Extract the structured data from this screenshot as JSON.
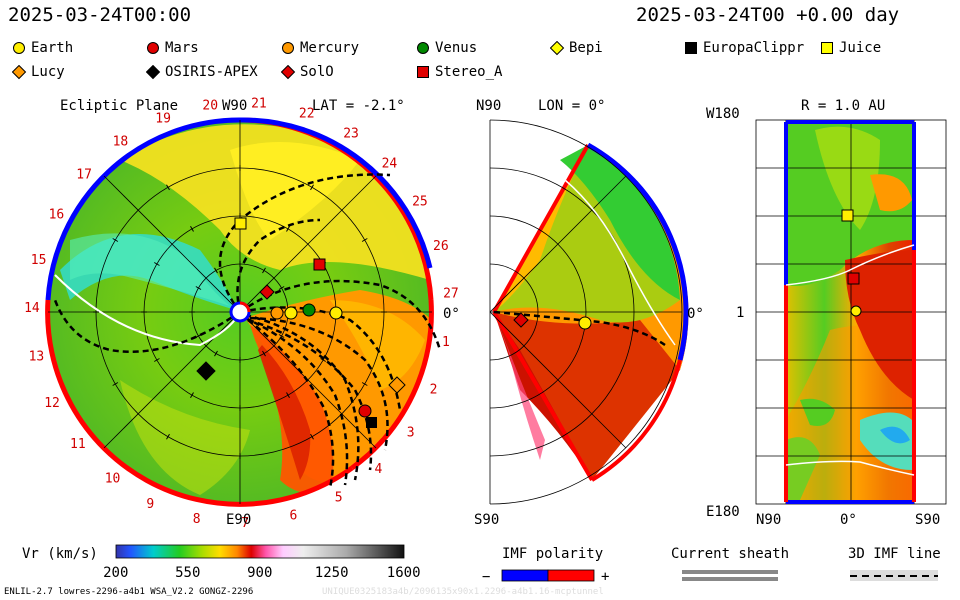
{
  "header": {
    "left_time": "2025-03-24T00:00",
    "right_time": "2025-03-24T00 +0.00 day"
  },
  "legend": [
    {
      "name": "Earth",
      "shape": "circle",
      "color": "#ffee00"
    },
    {
      "name": "Mars",
      "shape": "circle",
      "color": "#e00000"
    },
    {
      "name": "Mercury",
      "shape": "circle",
      "color": "#ff9900"
    },
    {
      "name": "Venus",
      "shape": "circle",
      "color": "#008800"
    },
    {
      "name": "Bepi",
      "shape": "diamond",
      "color": "#ffff00"
    },
    {
      "name": "EuropaClippr",
      "shape": "square",
      "color": "#000000"
    },
    {
      "name": "Juice",
      "shape": "square",
      "color": "#ffff00"
    },
    {
      "name": "Lucy",
      "shape": "diamond",
      "color": "#ff9900"
    },
    {
      "name": "OSIRIS-APEX",
      "shape": "diamond",
      "color": "#000000"
    },
    {
      "name": "SolO",
      "shape": "diamond",
      "color": "#e00000"
    },
    {
      "name": "Stereo_A",
      "shape": "square",
      "color": "#e00000"
    }
  ],
  "panels": {
    "ecliptic": {
      "title": "Ecliptic Plane",
      "top_label": "W90",
      "lat_label": "LAT = -2.1°",
      "right_label": "0°",
      "bottom_label": "E90",
      "carrington_numbers": [
        "1",
        "2",
        "3",
        "4",
        "5",
        "6",
        "7",
        "8",
        "9",
        "10",
        "11",
        "12",
        "13",
        "14",
        "15",
        "16",
        "17",
        "18",
        "19",
        "20",
        "21",
        "22",
        "23",
        "24",
        "25",
        "26",
        "27"
      ]
    },
    "meridional": {
      "top_left": "N90",
      "lon_label": "LON = 0°",
      "right_label": "0°",
      "bottom_left": "S90"
    },
    "map": {
      "title": "R = 1.0 AU",
      "top_left": "W180",
      "mid_left": "1",
      "bottom_left": "E180",
      "x_left": "N90",
      "x_mid": "0°",
      "x_right": "S90"
    }
  },
  "colorbar": {
    "label": "Vr (km/s)",
    "ticks": [
      "200",
      "550",
      "900",
      "1250",
      "1600"
    ]
  },
  "imf": {
    "title": "IMF polarity",
    "minus": "−",
    "plus": "+",
    "minus_color": "#0000ff",
    "plus_color": "#ff0000"
  },
  "sheath": {
    "title": "Current sheath"
  },
  "imf_line": {
    "title": "3D IMF line"
  },
  "footer": {
    "left": "ENLIL-2.7 lowres-2296-a4b1 WSA_V2.2 GONGZ-2296",
    "right": "UNIQUE0325183a4b/2096135x90x1.2296-a4b1.16-mcptunnel"
  },
  "chart_data": {
    "type": "heatmap",
    "title": "Vr (km/s)",
    "colorbar_range": [
      200,
      1600
    ],
    "colorbar_ticks": [
      200,
      550,
      900,
      1250,
      1600
    ],
    "panels": [
      "Ecliptic Plane",
      "LON = 0°",
      "R = 1.0 AU"
    ],
    "latitude": -2.1,
    "radius_au": 1.0
  }
}
